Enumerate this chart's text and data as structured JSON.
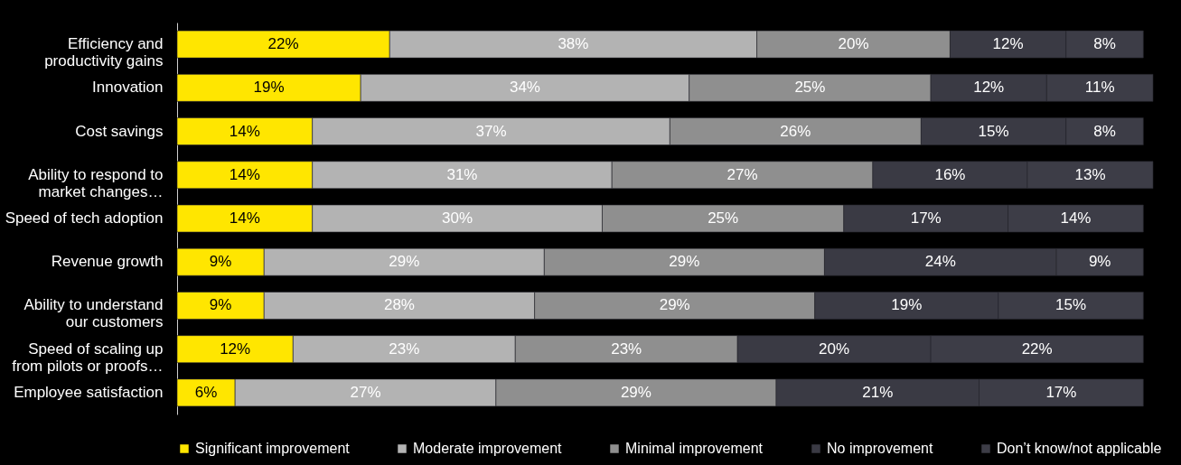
{
  "chart_data": {
    "type": "bar",
    "orientation": "horizontal",
    "stacked": true,
    "legend": "bottom",
    "tick_labels": "y",
    "categories": [
      "Efficiency and productivity gains",
      "Innovation",
      "Cost savings",
      "Ability to respond to market changes…",
      "Speed of tech adoption",
      "Revenue growth",
      "Ability to understand our customers",
      "Speed of scaling up from pilots or proofs…",
      "Employee satisfaction"
    ],
    "series": [
      {
        "name": "Significant improvement",
        "color": "#ffe600",
        "values": [
          22,
          19,
          14,
          14,
          14,
          9,
          9,
          12,
          6
        ],
        "value_labels": [
          "22%",
          "19%",
          "14%",
          "14%",
          "14%",
          "9%",
          "9%",
          "12%",
          "6%"
        ]
      },
      {
        "name": "Moderate improvement",
        "color": "#b3b3b3",
        "values": [
          38,
          34,
          37,
          31,
          30,
          29,
          28,
          23,
          27
        ],
        "value_labels": [
          "38%",
          "34%",
          "37%",
          "31%",
          "30%",
          "29%",
          "28%",
          "23%",
          "27%"
        ]
      },
      {
        "name": "Minimal improvement",
        "color": "#8f8f8f",
        "values": [
          20,
          25,
          26,
          27,
          25,
          29,
          29,
          23,
          29
        ],
        "value_labels": [
          "20%",
          "25%",
          "26%",
          "27%",
          "25%",
          "29%",
          "29%",
          "23%",
          "29%"
        ]
      },
      {
        "name": "No improvement",
        "color": "#3a3a44",
        "values": [
          12,
          12,
          15,
          16,
          17,
          24,
          19,
          20,
          21
        ],
        "value_labels": [
          "12%",
          "12%",
          "15%",
          "16%",
          "17%",
          "24%",
          "19%",
          "20%",
          "21%"
        ]
      },
      {
        "name": "Don’t know/not applicable",
        "color": "#3d3d47",
        "values": [
          8,
          11,
          8,
          13,
          14,
          9,
          15,
          22,
          17
        ],
        "value_labels": [
          "8%",
          "11%",
          "8%",
          "13%",
          "14%",
          "9%",
          "15%",
          "22%",
          "17%"
        ]
      }
    ]
  }
}
